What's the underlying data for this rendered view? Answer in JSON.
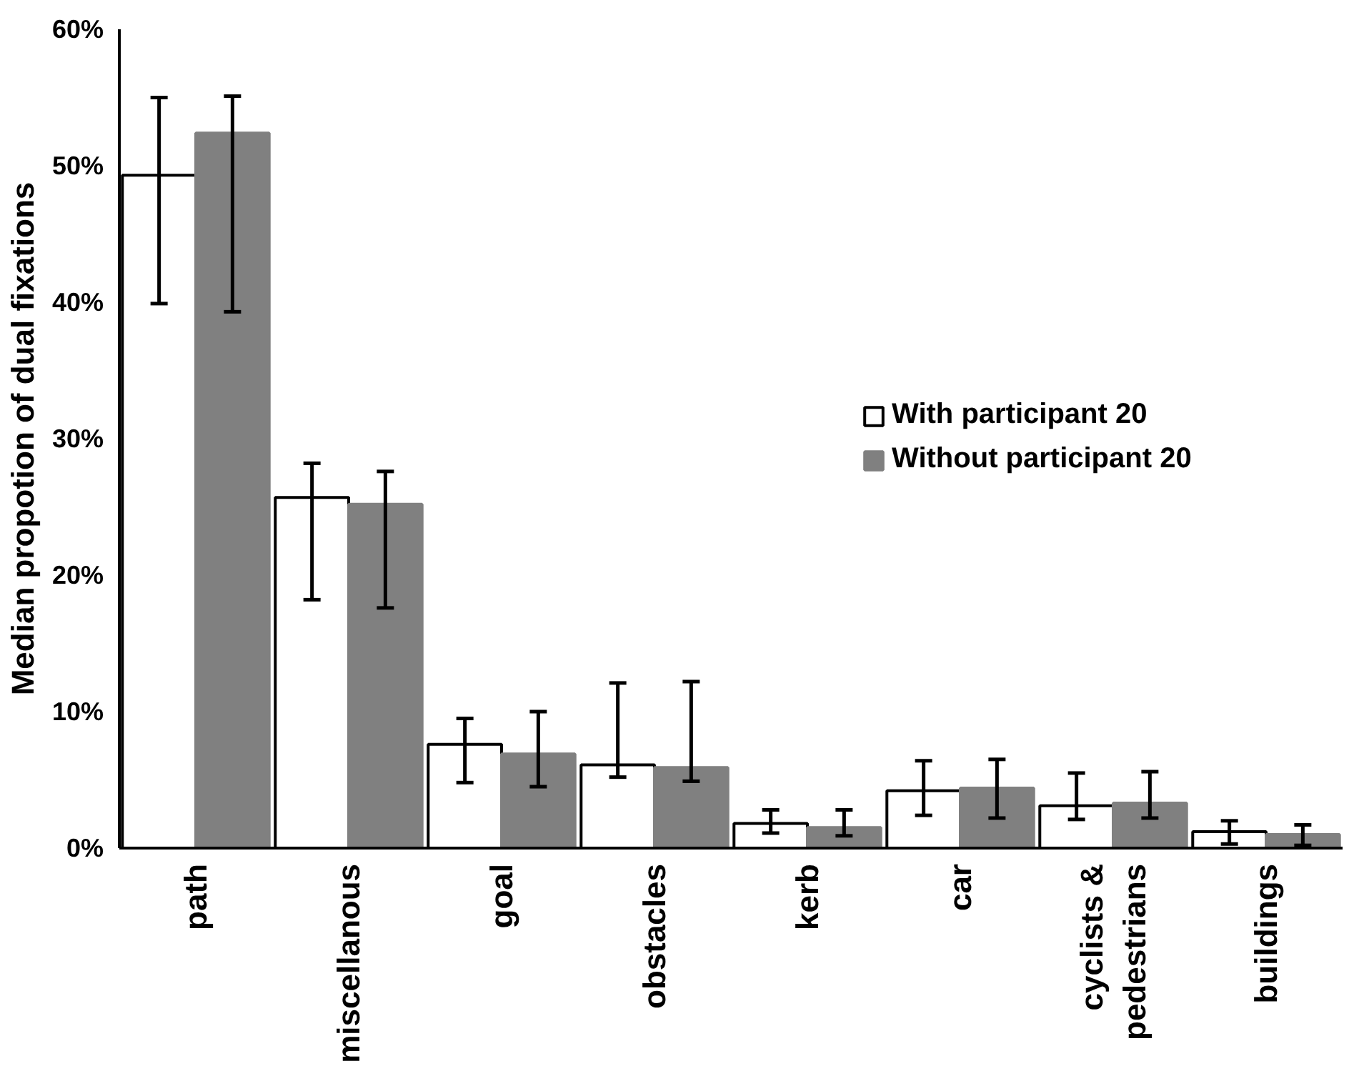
{
  "chart_data": {
    "type": "bar",
    "ylabel": "Median propotion of dual fixations",
    "categories": [
      "path",
      "miscellanous",
      "goal",
      "obstacles",
      "kerb",
      "car",
      "cyclists &\npedestrians",
      "buildings"
    ],
    "series": [
      {
        "name": "With participant 20",
        "color": "#ffffff",
        "values": [
          49.3,
          25.7,
          7.6,
          6.1,
          1.8,
          4.2,
          3.1,
          1.2
        ],
        "errors": [
          [
            39.9,
            55.0
          ],
          [
            18.2,
            28.2
          ],
          [
            4.8,
            9.5
          ],
          [
            5.2,
            12.1
          ],
          [
            1.1,
            2.8
          ],
          [
            2.4,
            6.4
          ],
          [
            2.1,
            5.5
          ],
          [
            0.3,
            2.0
          ]
        ]
      },
      {
        "name": "Without participant 20",
        "color": "#808080",
        "values": [
          52.4,
          25.2,
          6.9,
          5.9,
          1.5,
          4.4,
          3.3,
          1.0
        ],
        "errors": [
          [
            39.3,
            55.1
          ],
          [
            17.6,
            27.6
          ],
          [
            4.5,
            10.0
          ],
          [
            4.9,
            12.2
          ],
          [
            0.9,
            2.8
          ],
          [
            2.2,
            6.5
          ],
          [
            2.2,
            5.6
          ],
          [
            0.2,
            1.7
          ]
        ]
      }
    ],
    "ylim": [
      0,
      60
    ],
    "yticks": [
      {
        "value": 0,
        "label": "0%"
      },
      {
        "value": 10,
        "label": "10%"
      },
      {
        "value": 20,
        "label": "20%"
      },
      {
        "value": 30,
        "label": "30%"
      },
      {
        "value": 40,
        "label": "40%"
      },
      {
        "value": 50,
        "label": "50%"
      },
      {
        "value": 60,
        "label": "60%"
      }
    ],
    "grid": false,
    "legend": "right"
  }
}
